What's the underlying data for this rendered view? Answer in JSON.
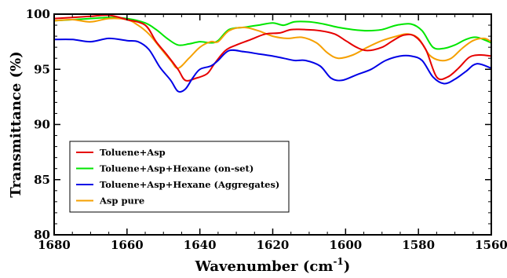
{
  "chart_data": {
    "type": "line",
    "xlabel": "Wavenumber (cm",
    "xlabel_sup": "-1",
    "xlabel_close": ")",
    "ylabel": "Transmittance (%)",
    "xlim": [
      1680,
      1560
    ],
    "ylim": [
      80,
      100
    ],
    "x_ticks": [
      1680,
      1660,
      1640,
      1620,
      1600,
      1580,
      1560
    ],
    "y_ticks": [
      80,
      85,
      90,
      95,
      100
    ],
    "x_tick_labels": [
      "1680",
      "1660",
      "1640",
      "1620",
      "1600",
      "1580",
      "1560"
    ],
    "y_tick_labels": [
      "80",
      "85",
      "90",
      "95",
      "100"
    ],
    "grid": false,
    "legend_position": "lower-left",
    "series": [
      {
        "name": "Toluene+Asp",
        "color": "#e60000",
        "points": [
          [
            1680,
            99.6
          ],
          [
            1675,
            99.7
          ],
          [
            1670,
            99.8
          ],
          [
            1665,
            99.9
          ],
          [
            1660,
            99.5
          ],
          [
            1655,
            99.0
          ],
          [
            1652,
            97.5
          ],
          [
            1649,
            96.3
          ],
          [
            1646,
            95.0
          ],
          [
            1644,
            94.0
          ],
          [
            1641,
            94.2
          ],
          [
            1638,
            94.6
          ],
          [
            1636,
            95.5
          ],
          [
            1633,
            96.7
          ],
          [
            1630,
            97.2
          ],
          [
            1626,
            97.7
          ],
          [
            1622,
            98.2
          ],
          [
            1618,
            98.3
          ],
          [
            1615,
            98.6
          ],
          [
            1611,
            98.6
          ],
          [
            1607,
            98.5
          ],
          [
            1603,
            98.2
          ],
          [
            1600,
            97.6
          ],
          [
            1597,
            97.0
          ],
          [
            1594,
            96.7
          ],
          [
            1590,
            97.0
          ],
          [
            1587,
            97.6
          ],
          [
            1584,
            98.1
          ],
          [
            1581,
            98.0
          ],
          [
            1578,
            96.8
          ],
          [
            1575,
            94.3
          ],
          [
            1572,
            94.3
          ],
          [
            1569,
            95.1
          ],
          [
            1566,
            96.1
          ],
          [
            1563,
            96.3
          ],
          [
            1560,
            96.2
          ]
        ]
      },
      {
        "name": "Toluene+Asp+Hexane (on-set)",
        "color": "#00e600",
        "points": [
          [
            1680,
            99.4
          ],
          [
            1675,
            99.5
          ],
          [
            1670,
            99.6
          ],
          [
            1665,
            99.7
          ],
          [
            1660,
            99.6
          ],
          [
            1655,
            99.2
          ],
          [
            1652,
            98.6
          ],
          [
            1649,
            97.8
          ],
          [
            1646,
            97.2
          ],
          [
            1643,
            97.3
          ],
          [
            1640,
            97.5
          ],
          [
            1637,
            97.4
          ],
          [
            1635,
            97.6
          ],
          [
            1632,
            98.6
          ],
          [
            1628,
            98.8
          ],
          [
            1624,
            99.0
          ],
          [
            1620,
            99.2
          ],
          [
            1617,
            99.0
          ],
          [
            1614,
            99.3
          ],
          [
            1610,
            99.3
          ],
          [
            1606,
            99.1
          ],
          [
            1602,
            98.8
          ],
          [
            1598,
            98.6
          ],
          [
            1594,
            98.5
          ],
          [
            1590,
            98.6
          ],
          [
            1586,
            99.0
          ],
          [
            1582,
            99.1
          ],
          [
            1579,
            98.5
          ],
          [
            1576,
            97.0
          ],
          [
            1573,
            96.9
          ],
          [
            1570,
            97.2
          ],
          [
            1567,
            97.7
          ],
          [
            1564,
            97.9
          ],
          [
            1560,
            97.4
          ]
        ]
      },
      {
        "name": "Toluene+Asp+Hexane (Aggregates)",
        "color": "#0000e6",
        "points": [
          [
            1680,
            97.7
          ],
          [
            1675,
            97.7
          ],
          [
            1670,
            97.5
          ],
          [
            1665,
            97.8
          ],
          [
            1660,
            97.6
          ],
          [
            1657,
            97.5
          ],
          [
            1654,
            96.8
          ],
          [
            1651,
            95.2
          ],
          [
            1648,
            94.0
          ],
          [
            1646,
            93.0
          ],
          [
            1644,
            93.2
          ],
          [
            1642,
            94.2
          ],
          [
            1640,
            95.0
          ],
          [
            1637,
            95.3
          ],
          [
            1635,
            95.8
          ],
          [
            1632,
            96.7
          ],
          [
            1628,
            96.6
          ],
          [
            1624,
            96.4
          ],
          [
            1620,
            96.2
          ],
          [
            1617,
            96.0
          ],
          [
            1614,
            95.8
          ],
          [
            1611,
            95.8
          ],
          [
            1607,
            95.3
          ],
          [
            1604,
            94.2
          ],
          [
            1601,
            94.0
          ],
          [
            1597,
            94.5
          ],
          [
            1593,
            95.0
          ],
          [
            1589,
            95.8
          ],
          [
            1585,
            96.2
          ],
          [
            1582,
            96.2
          ],
          [
            1579,
            95.8
          ],
          [
            1576,
            94.3
          ],
          [
            1573,
            93.7
          ],
          [
            1570,
            94.1
          ],
          [
            1567,
            94.8
          ],
          [
            1564,
            95.5
          ],
          [
            1560,
            95.1
          ]
        ]
      },
      {
        "name": "Asp pure",
        "color": "#f5a000",
        "points": [
          [
            1680,
            99.4
          ],
          [
            1675,
            99.5
          ],
          [
            1670,
            99.3
          ],
          [
            1665,
            99.6
          ],
          [
            1660,
            99.5
          ],
          [
            1657,
            99.0
          ],
          [
            1654,
            98.2
          ],
          [
            1651,
            97.0
          ],
          [
            1648,
            95.8
          ],
          [
            1646,
            95.1
          ],
          [
            1643,
            96.0
          ],
          [
            1640,
            97.0
          ],
          [
            1637,
            97.5
          ],
          [
            1635,
            97.5
          ],
          [
            1632,
            98.5
          ],
          [
            1628,
            98.8
          ],
          [
            1624,
            98.5
          ],
          [
            1620,
            98.0
          ],
          [
            1616,
            97.8
          ],
          [
            1612,
            97.9
          ],
          [
            1608,
            97.4
          ],
          [
            1605,
            96.5
          ],
          [
            1602,
            96.0
          ],
          [
            1598,
            96.3
          ],
          [
            1594,
            97.0
          ],
          [
            1590,
            97.6
          ],
          [
            1586,
            98.0
          ],
          [
            1583,
            98.2
          ],
          [
            1580,
            97.8
          ],
          [
            1577,
            96.3
          ],
          [
            1574,
            95.8
          ],
          [
            1571,
            96.0
          ],
          [
            1568,
            96.9
          ],
          [
            1565,
            97.6
          ],
          [
            1562,
            97.8
          ],
          [
            1560,
            97.5
          ]
        ]
      }
    ]
  }
}
